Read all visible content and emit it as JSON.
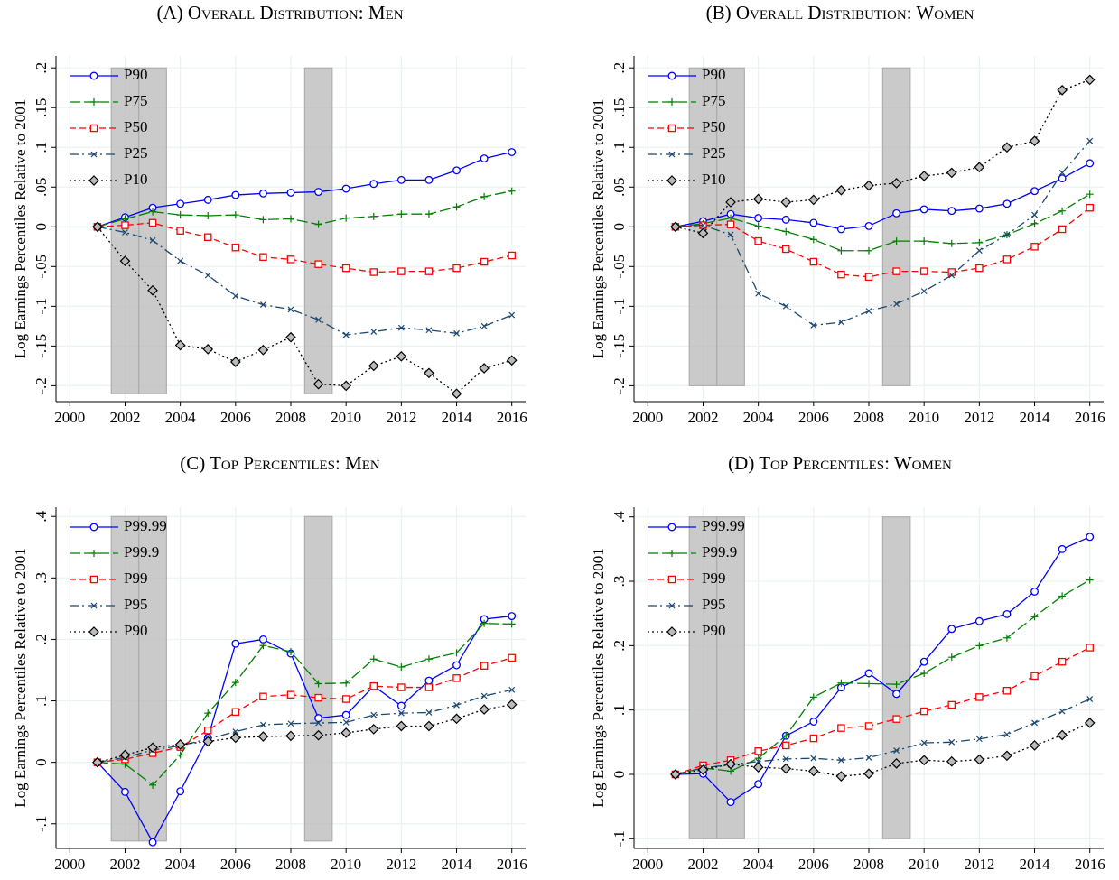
{
  "chart_data": [
    {
      "type": "line",
      "title": "(A) Overall Distribution: Men",
      "y_label": "Log Earnings Percentiles Relative to 2001",
      "x": [
        2001,
        2002,
        2003,
        2004,
        2005,
        2006,
        2007,
        2008,
        2009,
        2010,
        2011,
        2012,
        2013,
        2014,
        2015,
        2016
      ],
      "xlim": [
        1999.5,
        2016.5
      ],
      "xticks": [
        2000,
        2002,
        2004,
        2006,
        2008,
        2010,
        2012,
        2014,
        2016
      ],
      "ylim": [
        -0.22,
        0.215
      ],
      "yticks": [
        {
          "value": 0.2,
          "label": ".2"
        },
        {
          "value": 0.15,
          "label": ".15"
        },
        {
          "value": 0.1,
          "label": ".1"
        },
        {
          "value": 0.05,
          "label": ".05"
        },
        0,
        {
          "value": -0.05,
          "label": "-.05"
        },
        {
          "value": -0.1,
          "label": "-.1"
        },
        {
          "value": -0.15,
          "label": "-.15"
        },
        {
          "value": -0.2,
          "label": "-.2"
        }
      ],
      "grid": true,
      "legend": "upper left",
      "shaded_regions": [
        {
          "x": [
            2001.5,
            2002.5
          ],
          "y": [
            -0.21,
            0.2
          ]
        },
        {
          "x": [
            2002.5,
            2003.5
          ],
          "y": [
            -0.21,
            0.2
          ]
        },
        {
          "x": [
            2008.5,
            2009.5
          ],
          "y": [
            -0.21,
            0.2
          ]
        }
      ],
      "series": [
        {
          "name": "P90",
          "color": "#0000ff",
          "marker": "circle",
          "dash": "solid",
          "values": [
            0,
            0.012,
            0.024,
            0.029,
            0.034,
            0.04,
            0.042,
            0.043,
            0.044,
            0.048,
            0.054,
            0.059,
            0.059,
            0.071,
            0.086,
            0.094
          ]
        },
        {
          "name": "P75",
          "color": "#008000",
          "marker": "plus",
          "dash": "longdash",
          "values": [
            0,
            0.01,
            0.019,
            0.015,
            0.014,
            0.015,
            0.009,
            0.01,
            0.003,
            0.011,
            0.013,
            0.016,
            0.016,
            0.025,
            0.038,
            0.045
          ]
        },
        {
          "name": "P50",
          "color": "#ff0000",
          "marker": "square",
          "dash": "dash",
          "values": [
            0,
            0.002,
            0.005,
            -0.005,
            -0.013,
            -0.026,
            -0.038,
            -0.041,
            -0.047,
            -0.052,
            -0.057,
            -0.056,
            -0.056,
            -0.052,
            -0.044,
            -0.036
          ]
        },
        {
          "name": "P25",
          "color": "#1a476f",
          "marker": "x",
          "dash": "dashdot",
          "values": [
            0,
            -0.007,
            -0.017,
            -0.043,
            -0.061,
            -0.087,
            -0.098,
            -0.104,
            -0.117,
            -0.136,
            -0.132,
            -0.127,
            -0.13,
            -0.134,
            -0.125,
            -0.111
          ]
        },
        {
          "name": "P10",
          "color": "#000000",
          "marker": "diamond",
          "dash": "dot",
          "values": [
            0,
            -0.043,
            -0.08,
            -0.149,
            -0.154,
            -0.17,
            -0.155,
            -0.139,
            -0.198,
            -0.2,
            -0.175,
            -0.163,
            -0.184,
            -0.21,
            -0.178,
            -0.168
          ]
        }
      ]
    },
    {
      "type": "line",
      "title": "(B) Overall Distribution: Women",
      "y_label": "Log Earnings Percentiles Relative to 2001",
      "x": [
        2001,
        2002,
        2003,
        2004,
        2005,
        2006,
        2007,
        2008,
        2009,
        2010,
        2011,
        2012,
        2013,
        2014,
        2015,
        2016
      ],
      "xlim": [
        1999.5,
        2016.5
      ],
      "xticks": [
        2000,
        2002,
        2004,
        2006,
        2008,
        2010,
        2012,
        2014,
        2016
      ],
      "ylim": [
        -0.22,
        0.215
      ],
      "yticks": [
        {
          "value": 0.2,
          "label": ".2"
        },
        {
          "value": 0.15,
          "label": ".15"
        },
        {
          "value": 0.1,
          "label": ".1"
        },
        {
          "value": 0.05,
          "label": ".05"
        },
        0,
        {
          "value": -0.05,
          "label": "-.05"
        },
        {
          "value": -0.1,
          "label": "-.1"
        },
        {
          "value": -0.15,
          "label": "-.15"
        },
        {
          "value": -0.2,
          "label": "-.2"
        }
      ],
      "grid": true,
      "legend": "upper left",
      "shaded_regions": [
        {
          "x": [
            2001.5,
            2002.5
          ],
          "y": [
            -0.2,
            0.2
          ]
        },
        {
          "x": [
            2002.5,
            2003.5
          ],
          "y": [
            -0.2,
            0.2
          ]
        },
        {
          "x": [
            2008.5,
            2009.5
          ],
          "y": [
            -0.2,
            0.2
          ]
        }
      ],
      "series": [
        {
          "name": "P90",
          "color": "#0000ff",
          "marker": "circle",
          "dash": "solid",
          "values": [
            0,
            0.007,
            0.016,
            0.011,
            0.009,
            0.005,
            -0.003,
            0.001,
            0.017,
            0.022,
            0.02,
            0.023,
            0.029,
            0.045,
            0.061,
            0.08
          ]
        },
        {
          "name": "P75",
          "color": "#008000",
          "marker": "plus",
          "dash": "longdash",
          "values": [
            0,
            0.004,
            0.011,
            0.001,
            -0.006,
            -0.016,
            -0.03,
            -0.03,
            -0.018,
            -0.018,
            -0.021,
            -0.02,
            -0.01,
            0.004,
            0.02,
            0.041
          ]
        },
        {
          "name": "P50",
          "color": "#ff0000",
          "marker": "square",
          "dash": "dash",
          "values": [
            0,
            0.002,
            0.003,
            -0.018,
            -0.028,
            -0.044,
            -0.06,
            -0.063,
            -0.056,
            -0.056,
            -0.057,
            -0.052,
            -0.041,
            -0.025,
            -0.003,
            0.024
          ]
        },
        {
          "name": "P25",
          "color": "#1a476f",
          "marker": "x",
          "dash": "dashdot",
          "values": [
            0,
            0.002,
            -0.01,
            -0.084,
            -0.1,
            -0.124,
            -0.12,
            -0.106,
            -0.097,
            -0.081,
            -0.061,
            -0.03,
            -0.01,
            0.015,
            0.068,
            0.108
          ]
        },
        {
          "name": "P10",
          "color": "#000000",
          "marker": "diamond",
          "dash": "dot",
          "values": [
            0,
            -0.008,
            0.031,
            0.035,
            0.031,
            0.034,
            0.046,
            0.052,
            0.055,
            0.064,
            0.068,
            0.075,
            0.1,
            0.108,
            0.172,
            0.185
          ]
        }
      ]
    },
    {
      "type": "line",
      "title": "(C) Top Percentiles: Men",
      "y_label": "Log Earnings Percentiles Relative to 2001",
      "x": [
        2001,
        2002,
        2003,
        2004,
        2005,
        2006,
        2007,
        2008,
        2009,
        2010,
        2011,
        2012,
        2013,
        2014,
        2015,
        2016
      ],
      "xlim": [
        1999.5,
        2016.5
      ],
      "xticks": [
        2000,
        2002,
        2004,
        2006,
        2008,
        2010,
        2012,
        2014,
        2016
      ],
      "ylim": [
        -0.14,
        0.415
      ],
      "yticks": [
        {
          "value": 0.4,
          "label": ".4"
        },
        {
          "value": 0.3,
          "label": ".3"
        },
        {
          "value": 0.2,
          "label": ".2"
        },
        {
          "value": 0.1,
          "label": ".1"
        },
        0,
        {
          "value": -0.1,
          "label": "-.1"
        }
      ],
      "grid": true,
      "legend": "upper left",
      "shaded_regions": [
        {
          "x": [
            2001.5,
            2002.5
          ],
          "y": [
            -0.128,
            0.4
          ]
        },
        {
          "x": [
            2002.5,
            2003.5
          ],
          "y": [
            -0.128,
            0.4
          ]
        },
        {
          "x": [
            2008.5,
            2009.5
          ],
          "y": [
            -0.128,
            0.4
          ]
        }
      ],
      "series": [
        {
          "name": "P99.99",
          "color": "#0000ff",
          "marker": "circle",
          "dash": "solid",
          "values": [
            0,
            -0.048,
            -0.13,
            -0.047,
            0.04,
            0.193,
            0.2,
            0.177,
            0.072,
            0.077,
            0.124,
            0.092,
            0.133,
            0.158,
            0.233,
            0.238
          ]
        },
        {
          "name": "P99.9",
          "color": "#008000",
          "marker": "plus",
          "dash": "longdash",
          "values": [
            0,
            -0.003,
            -0.037,
            0.012,
            0.08,
            0.13,
            0.19,
            0.18,
            0.128,
            0.129,
            0.168,
            0.155,
            0.168,
            0.178,
            0.226,
            0.225
          ]
        },
        {
          "name": "P99",
          "color": "#ff0000",
          "marker": "square",
          "dash": "dash",
          "values": [
            0,
            0.005,
            0.015,
            0.025,
            0.052,
            0.082,
            0.107,
            0.11,
            0.105,
            0.103,
            0.124,
            0.122,
            0.122,
            0.137,
            0.157,
            0.17
          ]
        },
        {
          "name": "P95",
          "color": "#1a476f",
          "marker": "x",
          "dash": "dashdot",
          "values": [
            0,
            0.008,
            0.02,
            0.027,
            0.038,
            0.05,
            0.061,
            0.063,
            0.064,
            0.065,
            0.077,
            0.08,
            0.081,
            0.093,
            0.108,
            0.118
          ]
        },
        {
          "name": "P90",
          "color": "#000000",
          "marker": "diamond",
          "dash": "dot",
          "values": [
            0,
            0.012,
            0.024,
            0.029,
            0.034,
            0.04,
            0.042,
            0.043,
            0.044,
            0.048,
            0.054,
            0.059,
            0.059,
            0.071,
            0.086,
            0.094
          ]
        }
      ]
    },
    {
      "type": "line",
      "title": "(D) Top Percentiles: Women",
      "y_label": "Log Earnings Percentiles Relative to 2001",
      "x": [
        2001,
        2002,
        2003,
        2004,
        2005,
        2006,
        2007,
        2008,
        2009,
        2010,
        2011,
        2012,
        2013,
        2014,
        2015,
        2016
      ],
      "xlim": [
        1999.5,
        2016.5
      ],
      "xticks": [
        2000,
        2002,
        2004,
        2006,
        2008,
        2010,
        2012,
        2014,
        2016
      ],
      "ylim": [
        -0.115,
        0.415
      ],
      "yticks": [
        {
          "value": 0.4,
          "label": ".4"
        },
        {
          "value": 0.3,
          "label": ".3"
        },
        {
          "value": 0.2,
          "label": ".2"
        },
        {
          "value": 0.1,
          "label": ".1"
        },
        0,
        {
          "value": -0.1,
          "label": "-.1"
        }
      ],
      "grid": true,
      "legend": "upper left",
      "shaded_regions": [
        {
          "x": [
            2001.5,
            2002.5
          ],
          "y": [
            -0.1,
            0.4
          ]
        },
        {
          "x": [
            2002.5,
            2003.5
          ],
          "y": [
            -0.1,
            0.4
          ]
        },
        {
          "x": [
            2008.5,
            2009.5
          ],
          "y": [
            -0.1,
            0.4
          ]
        }
      ],
      "series": [
        {
          "name": "P99.99",
          "color": "#0000ff",
          "marker": "circle",
          "dash": "solid",
          "values": [
            0,
            0.001,
            -0.043,
            -0.015,
            0.06,
            0.082,
            0.135,
            0.157,
            0.125,
            0.175,
            0.226,
            0.238,
            0.249,
            0.284,
            0.35,
            0.369
          ]
        },
        {
          "name": "P99.9",
          "color": "#008000",
          "marker": "plus",
          "dash": "longdash",
          "values": [
            0,
            0.01,
            0.005,
            0.025,
            0.06,
            0.12,
            0.142,
            0.141,
            0.14,
            0.157,
            0.182,
            0.2,
            0.212,
            0.245,
            0.277,
            0.302
          ]
        },
        {
          "name": "P99",
          "color": "#ff0000",
          "marker": "square",
          "dash": "dash",
          "values": [
            0,
            0.014,
            0.022,
            0.036,
            0.045,
            0.056,
            0.072,
            0.075,
            0.086,
            0.098,
            0.108,
            0.12,
            0.13,
            0.153,
            0.175,
            0.197
          ]
        },
        {
          "name": "P95",
          "color": "#1a476f",
          "marker": "x",
          "dash": "dashdot",
          "values": [
            0,
            0.01,
            0.015,
            0.02,
            0.024,
            0.025,
            0.022,
            0.026,
            0.037,
            0.049,
            0.05,
            0.055,
            0.062,
            0.08,
            0.098,
            0.117
          ]
        },
        {
          "name": "P90",
          "color": "#000000",
          "marker": "diamond",
          "dash": "dot",
          "values": [
            0,
            0.007,
            0.016,
            0.011,
            0.009,
            0.005,
            -0.003,
            0.001,
            0.017,
            0.022,
            0.02,
            0.023,
            0.029,
            0.045,
            0.061,
            0.08
          ]
        }
      ]
    }
  ]
}
